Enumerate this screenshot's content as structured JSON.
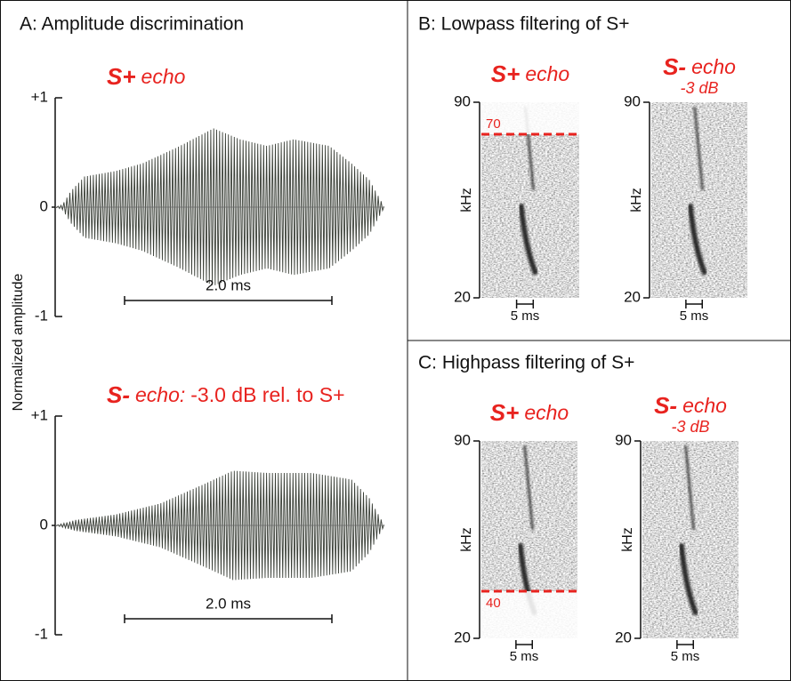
{
  "panel_a": {
    "title": "A: Amplitude discrimination",
    "y_label": "Normalized amplitude",
    "top": {
      "stim": "S+",
      "echo": "echo",
      "yticks": [
        "+1",
        "0",
        "-1"
      ],
      "scale_bar": "2.0 ms"
    },
    "bottom": {
      "stim": "S-",
      "echo": "echo:",
      "note": "-3.0 dB rel. to S+",
      "yticks": [
        "+1",
        "0",
        "-1"
      ],
      "scale_bar": "2.0 ms"
    }
  },
  "panel_b": {
    "title": "B: Lowpass filtering of S+",
    "left": {
      "stim": "S+",
      "echo": "echo",
      "yticks": [
        "90",
        "20"
      ],
      "y_label": "kHz",
      "cutoff": "70",
      "scale_bar": "5 ms"
    },
    "right": {
      "stim": "S-",
      "echo": "echo",
      "atten": "-3 dB",
      "yticks": [
        "90",
        "20"
      ],
      "y_label": "kHz",
      "scale_bar": "5 ms"
    }
  },
  "panel_c": {
    "title": "C: Highpass filtering of S+",
    "left": {
      "stim": "S+",
      "echo": "echo",
      "yticks": [
        "90",
        "20"
      ],
      "y_label": "kHz",
      "cutoff": "40",
      "scale_bar": "5 ms"
    },
    "right": {
      "stim": "S-",
      "echo": "echo",
      "atten": "-3 dB",
      "yticks": [
        "90",
        "20"
      ],
      "y_label": "kHz",
      "scale_bar": "5 ms"
    }
  }
}
